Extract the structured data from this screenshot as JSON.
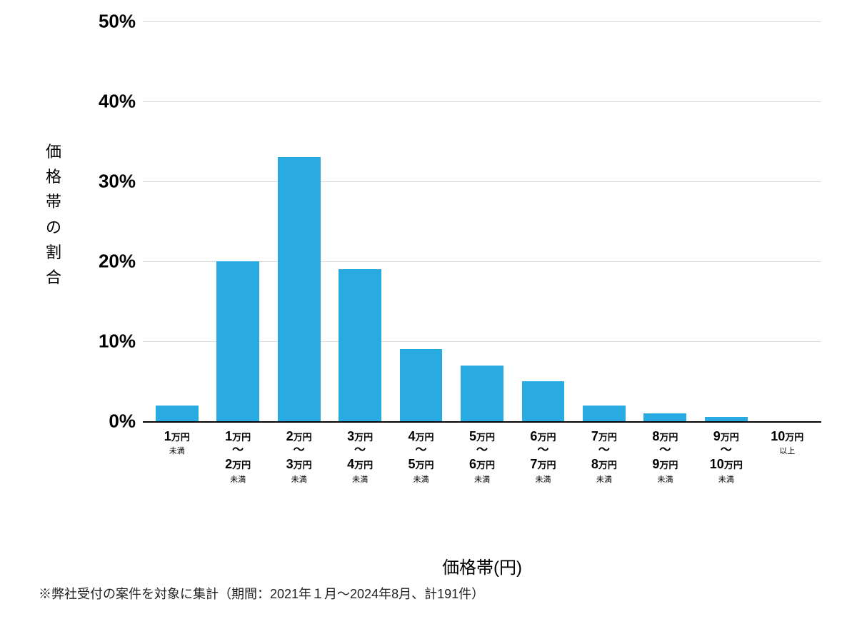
{
  "chart": {
    "type": "bar",
    "y_axis_label": "価格帯の割合",
    "x_axis_title": "価格帯(円)",
    "ylim": [
      0,
      50
    ],
    "ytick_step": 10,
    "ytick_suffix": "%",
    "bar_color": "#29abe2",
    "grid_color": "#d9d9d9",
    "baseline_color": "#000000",
    "background_color": "#ffffff",
    "bar_width_ratio": 0.7,
    "categories": [
      {
        "line1_num": "1",
        "line1_unit": "万円",
        "sub1": "未満"
      },
      {
        "line1_num": "1",
        "line1_unit": "万円",
        "tilde": "〜",
        "line2_num": "2",
        "line2_unit": "万円",
        "sub2": "未満"
      },
      {
        "line1_num": "2",
        "line1_unit": "万円",
        "tilde": "〜",
        "line2_num": "3",
        "line2_unit": "万円",
        "sub2": "未満"
      },
      {
        "line1_num": "3",
        "line1_unit": "万円",
        "tilde": "〜",
        "line2_num": "4",
        "line2_unit": "万円",
        "sub2": "未満"
      },
      {
        "line1_num": "4",
        "line1_unit": "万円",
        "tilde": "〜",
        "line2_num": "5",
        "line2_unit": "万円",
        "sub2": "未満"
      },
      {
        "line1_num": "5",
        "line1_unit": "万円",
        "tilde": "〜",
        "line2_num": "6",
        "line2_unit": "万円",
        "sub2": "未満"
      },
      {
        "line1_num": "6",
        "line1_unit": "万円",
        "tilde": "〜",
        "line2_num": "7",
        "line2_unit": "万円",
        "sub2": "未満"
      },
      {
        "line1_num": "7",
        "line1_unit": "万円",
        "tilde": "〜",
        "line2_num": "8",
        "line2_unit": "万円",
        "sub2": "未満"
      },
      {
        "line1_num": "8",
        "line1_unit": "万円",
        "tilde": "〜",
        "line2_num": "9",
        "line2_unit": "万円",
        "sub2": "未満"
      },
      {
        "line1_num": "9",
        "line1_unit": "万円",
        "tilde": "〜",
        "line2_num": "10",
        "line2_unit": "万円",
        "sub2": "未満"
      },
      {
        "line1_num": "10",
        "line1_unit": "万円",
        "sub1": "以上"
      }
    ],
    "values": [
      2,
      20,
      33,
      19,
      9,
      7,
      5,
      2,
      1,
      0.5,
      0
    ],
    "yticks": [
      0,
      10,
      20,
      30,
      40,
      50
    ],
    "fonts": {
      "ytick_fontsize": 26,
      "ytick_fontweight": 700,
      "axis_label_fontsize": 22,
      "x_tick_big_fontsize": 18,
      "x_tick_unit_fontsize": 13,
      "x_tick_sub_fontsize": 11,
      "x_axis_title_fontsize": 24,
      "footnote_fontsize": 18
    }
  },
  "footnote": "※弊社受付の案件を対象に集計（期間：2021年１月〜2024年8月、計191件）"
}
